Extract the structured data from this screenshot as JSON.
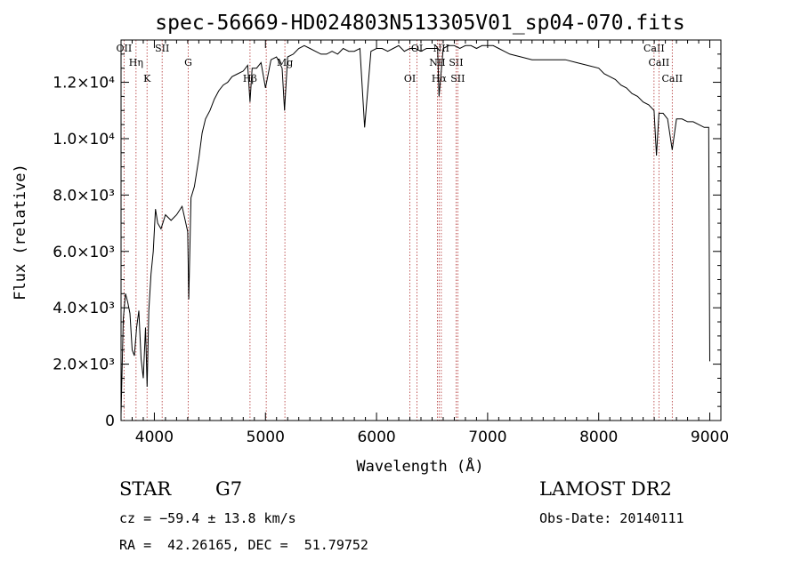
{
  "chart_data": {
    "type": "line",
    "title": "spec-56669-HD024803N513305V01_sp04-070.fits",
    "xlabel": "Wavelength (Å)",
    "ylabel": "Flux (relative)",
    "xlim": [
      3700,
      9100
    ],
    "ylim": [
      0,
      13500
    ],
    "x_ticks": [
      4000,
      5000,
      6000,
      7000,
      8000,
      9000
    ],
    "x_tick_labels": [
      "4000",
      "5000",
      "6000",
      "7000",
      "8000",
      "9000"
    ],
    "y_ticks": [
      0,
      2000,
      4000,
      6000,
      8000,
      10000,
      12000
    ],
    "y_tick_labels": [
      "0",
      "2.0×10³",
      "4.0×10³",
      "6.0×10³",
      "8.0×10³",
      "1.0×10⁴",
      "1.2×10⁴"
    ],
    "series": [
      {
        "x": [
          3700,
          3720,
          3740,
          3760,
          3780,
          3800,
          3820,
          3840,
          3860,
          3880,
          3900,
          3920,
          3935,
          3950,
          3970,
          3990,
          4010,
          4030,
          4060,
          4100,
          4150,
          4200,
          4250,
          4300,
          4310,
          4330,
          4360,
          4400,
          4430,
          4460,
          4500,
          4540,
          4580,
          4620,
          4660,
          4700,
          4750,
          4800,
          4840,
          4861,
          4880,
          4920,
          4960,
          5000,
          5050,
          5100,
          5150,
          5172,
          5200,
          5250,
          5300,
          5350,
          5400,
          5450,
          5500,
          5550,
          5600,
          5650,
          5700,
          5750,
          5800,
          5850,
          5893,
          5950,
          6000,
          6050,
          6100,
          6150,
          6200,
          6250,
          6300,
          6350,
          6400,
          6450,
          6500,
          6550,
          6563,
          6600,
          6650,
          6700,
          6750,
          6800,
          6850,
          6900,
          6950,
          7000,
          7050,
          7100,
          7150,
          7200,
          7300,
          7400,
          7500,
          7600,
          7700,
          7800,
          7900,
          8000,
          8050,
          8100,
          8150,
          8200,
          8250,
          8300,
          8350,
          8400,
          8450,
          8498,
          8520,
          8542,
          8580,
          8620,
          8662,
          8700,
          8750,
          8800,
          8850,
          8900,
          8950,
          8990,
          9000
        ],
        "y": [
          200,
          3600,
          4500,
          4200,
          3800,
          2500,
          2300,
          3300,
          3900,
          2200,
          1500,
          3300,
          1200,
          3900,
          5200,
          6000,
          7500,
          7000,
          6800,
          7300,
          7100,
          7300,
          7600,
          6700,
          4300,
          7900,
          8300,
          9300,
          10200,
          10700,
          11000,
          11400,
          11700,
          11900,
          12000,
          12200,
          12300,
          12400,
          12600,
          11300,
          12500,
          12500,
          12700,
          11800,
          12800,
          12900,
          12500,
          11000,
          12900,
          13000,
          13200,
          13300,
          13200,
          13100,
          13000,
          13000,
          13100,
          13000,
          13200,
          13100,
          13100,
          13200,
          10400,
          13100,
          13200,
          13200,
          13100,
          13200,
          13300,
          13100,
          13200,
          13200,
          13100,
          13200,
          13200,
          13200,
          11500,
          13200,
          13300,
          13300,
          13200,
          13300,
          13300,
          13200,
          13300,
          13300,
          13300,
          13200,
          13100,
          13000,
          12900,
          12800,
          12800,
          12800,
          12800,
          12700,
          12600,
          12500,
          12300,
          12200,
          12100,
          11900,
          11800,
          11600,
          11500,
          11300,
          11200,
          11000,
          9400,
          10900,
          10900,
          10700,
          9600,
          10700,
          10700,
          10600,
          10600,
          10500,
          10400,
          10400,
          2100
        ]
      }
    ],
    "spectral_lines": [
      {
        "label": "OII",
        "wavelength": 3727
      },
      {
        "label": "Hη",
        "wavelength": 3835
      },
      {
        "label": "K",
        "wavelength": 3934
      },
      {
        "label": "SII",
        "wavelength": 4070
      },
      {
        "label": "G",
        "wavelength": 4305
      },
      {
        "label": "Hβ",
        "wavelength": 4861
      },
      {
        "label": "",
        "wavelength": 5007
      },
      {
        "label": "Mg",
        "wavelength": 5175
      },
      {
        "label": "OI",
        "wavelength": 6300
      },
      {
        "label": "OI",
        "wavelength": 6364
      },
      {
        "label": "NII",
        "wavelength": 6548
      },
      {
        "label": "Hα",
        "wavelength": 6563
      },
      {
        "label": "NII",
        "wavelength": 6583
      },
      {
        "label": "SII",
        "wavelength": 6716
      },
      {
        "label": "SII",
        "wavelength": 6731
      },
      {
        "label": "CaII",
        "wavelength": 8498
      },
      {
        "label": "CaII",
        "wavelength": 8542
      },
      {
        "label": "CaII",
        "wavelength": 8662
      }
    ],
    "grid": false,
    "legend": "none"
  },
  "info": {
    "object_class": "STAR",
    "subclass": "G7",
    "survey": "LAMOST DR2",
    "cz": "cz = −59.4 ± 13.8 km/s",
    "obs_date": "Obs-Date: 20140111",
    "coords": "RA =  42.26165, DEC =  51.79752"
  }
}
